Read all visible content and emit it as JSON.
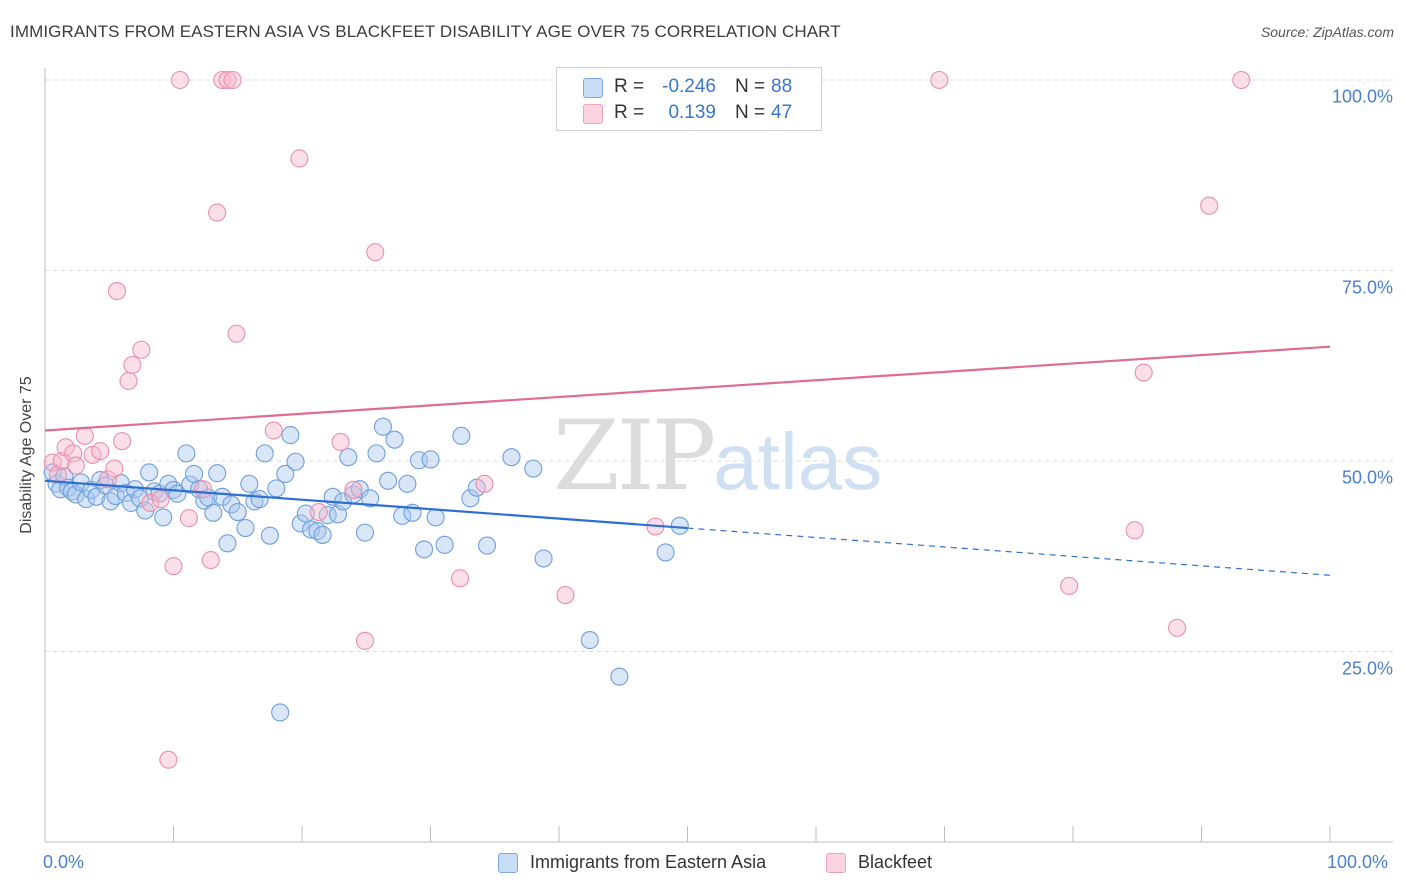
{
  "chart_data": {
    "type": "scatter",
    "title": "IMMIGRANTS FROM EASTERN ASIA VS BLACKFEET DISABILITY AGE OVER 75 CORRELATION CHART",
    "source": "Source: ZipAtlas.com",
    "xlabel": "",
    "ylabel": "Disability Age Over 75",
    "xlim": [
      0,
      100
    ],
    "ylim": [
      0,
      100
    ],
    "x_tick_labels": [
      "0.0%",
      "100.0%"
    ],
    "y_tick_labels": [
      {
        "value": 100,
        "label": "100.0%"
      },
      {
        "value": 75,
        "label": "75.0%"
      },
      {
        "value": 50,
        "label": "50.0%"
      },
      {
        "value": 25,
        "label": "25.0%"
      }
    ],
    "grid": true,
    "watermark": {
      "zip": "ZIP",
      "atlas": "atlas"
    },
    "stats": [
      {
        "series": "Immigrants from Eastern Asia",
        "r_label": "R =",
        "r": "-0.246",
        "n_label": "N =",
        "n": "88",
        "color": "#a9c8f0"
      },
      {
        "series": "Blackfeet",
        "r_label": "R =",
        "r": "0.139",
        "n_label": "N =",
        "n": "47",
        "color": "#f6b8cc"
      }
    ],
    "series": [
      {
        "name": "Immigrants from Eastern Asia",
        "color": "#a9c8f0",
        "stroke": "#6f9fdc",
        "trend": {
          "x0": 0,
          "y0": 47.4,
          "x1": 50,
          "y1": 41.2,
          "dash_x1": 100,
          "dash_y1": 35.0,
          "color": "#2d6fd0"
        },
        "points": [
          [
            0.6,
            48.5
          ],
          [
            0.9,
            47.0
          ],
          [
            1.2,
            46.3
          ],
          [
            1.5,
            48.0
          ],
          [
            1.8,
            46.5
          ],
          [
            2.1,
            46.0
          ],
          [
            2.4,
            45.6
          ],
          [
            2.8,
            47.2
          ],
          [
            3.2,
            45.0
          ],
          [
            3.6,
            46.2
          ],
          [
            4.0,
            45.3
          ],
          [
            4.3,
            47.5
          ],
          [
            4.7,
            46.8
          ],
          [
            5.1,
            44.7
          ],
          [
            5.5,
            45.4
          ],
          [
            5.9,
            47.1
          ],
          [
            6.3,
            45.8
          ],
          [
            6.7,
            44.5
          ],
          [
            7.0,
            46.3
          ],
          [
            7.4,
            45.1
          ],
          [
            7.8,
            43.5
          ],
          [
            8.1,
            48.5
          ],
          [
            8.5,
            46.0
          ],
          [
            8.9,
            45.7
          ],
          [
            9.2,
            42.6
          ],
          [
            9.6,
            47.0
          ],
          [
            10.0,
            46.2
          ],
          [
            10.3,
            45.7
          ],
          [
            11.0,
            51.0
          ],
          [
            11.3,
            46.9
          ],
          [
            11.6,
            48.3
          ],
          [
            12.0,
            46.3
          ],
          [
            12.4,
            44.8
          ],
          [
            12.7,
            45.2
          ],
          [
            13.1,
            43.2
          ],
          [
            13.4,
            48.4
          ],
          [
            13.8,
            45.3
          ],
          [
            14.2,
            39.2
          ],
          [
            14.5,
            44.3
          ],
          [
            15.0,
            43.3
          ],
          [
            15.6,
            41.2
          ],
          [
            15.9,
            47.0
          ],
          [
            16.3,
            44.7
          ],
          [
            16.7,
            45.0
          ],
          [
            17.1,
            51.0
          ],
          [
            17.5,
            40.2
          ],
          [
            18.0,
            46.4
          ],
          [
            18.3,
            17.0
          ],
          [
            18.7,
            48.3
          ],
          [
            19.1,
            53.4
          ],
          [
            19.5,
            49.9
          ],
          [
            19.9,
            41.8
          ],
          [
            20.3,
            43.1
          ],
          [
            20.7,
            41.0
          ],
          [
            21.2,
            40.8
          ],
          [
            21.6,
            40.3
          ],
          [
            22.0,
            42.9
          ],
          [
            22.4,
            45.3
          ],
          [
            22.8,
            43.0
          ],
          [
            23.2,
            44.7
          ],
          [
            23.6,
            50.5
          ],
          [
            24.0,
            45.6
          ],
          [
            24.5,
            46.3
          ],
          [
            24.9,
            40.6
          ],
          [
            25.3,
            45.1
          ],
          [
            25.8,
            51.0
          ],
          [
            26.3,
            54.5
          ],
          [
            26.7,
            47.4
          ],
          [
            27.2,
            52.8
          ],
          [
            27.8,
            42.8
          ],
          [
            28.2,
            47.0
          ],
          [
            28.6,
            43.2
          ],
          [
            29.1,
            50.1
          ],
          [
            29.5,
            38.4
          ],
          [
            30.0,
            50.2
          ],
          [
            30.4,
            42.6
          ],
          [
            31.1,
            39.0
          ],
          [
            32.4,
            53.3
          ],
          [
            33.1,
            45.1
          ],
          [
            33.6,
            46.5
          ],
          [
            34.4,
            38.9
          ],
          [
            36.3,
            50.5
          ],
          [
            38.0,
            49.0
          ],
          [
            38.8,
            37.2
          ],
          [
            42.4,
            26.5
          ],
          [
            44.7,
            21.7
          ],
          [
            48.3,
            38.0
          ],
          [
            49.4,
            41.5
          ]
        ]
      },
      {
        "name": "Blackfeet",
        "color": "#f6b8cc",
        "stroke": "#e98fab",
        "trend": {
          "x0": 0,
          "y0": 54.0,
          "x1": 100,
          "y1": 65.0,
          "color": "#e06b95"
        },
        "points": [
          [
            0.6,
            49.8
          ],
          [
            1.0,
            48.2
          ],
          [
            1.3,
            50.0
          ],
          [
            1.6,
            51.8
          ],
          [
            2.2,
            51.0
          ],
          [
            2.4,
            49.4
          ],
          [
            3.1,
            53.3
          ],
          [
            3.7,
            50.8
          ],
          [
            4.3,
            51.3
          ],
          [
            4.9,
            47.6
          ],
          [
            5.4,
            49.0
          ],
          [
            5.6,
            72.3
          ],
          [
            6.0,
            52.6
          ],
          [
            6.5,
            60.5
          ],
          [
            6.8,
            62.6
          ],
          [
            7.5,
            64.6
          ],
          [
            8.2,
            44.5
          ],
          [
            9.0,
            45.0
          ],
          [
            9.6,
            10.8
          ],
          [
            10.0,
            36.2
          ],
          [
            10.5,
            100
          ],
          [
            11.2,
            42.5
          ],
          [
            12.3,
            46.3
          ],
          [
            12.9,
            37.0
          ],
          [
            13.4,
            82.6
          ],
          [
            13.8,
            100
          ],
          [
            14.2,
            100
          ],
          [
            14.6,
            100
          ],
          [
            14.9,
            66.7
          ],
          [
            17.8,
            54.0
          ],
          [
            19.8,
            89.7
          ],
          [
            21.3,
            43.3
          ],
          [
            23.0,
            52.5
          ],
          [
            24.0,
            46.2
          ],
          [
            24.9,
            26.4
          ],
          [
            25.7,
            77.4
          ],
          [
            32.3,
            34.6
          ],
          [
            34.2,
            47.0
          ],
          [
            40.5,
            32.4
          ],
          [
            47.5,
            41.4
          ],
          [
            69.6,
            100
          ],
          [
            79.7,
            33.6
          ],
          [
            84.8,
            40.9
          ],
          [
            85.5,
            61.6
          ],
          [
            88.1,
            28.1
          ],
          [
            90.6,
            83.5
          ],
          [
            93.1,
            100
          ]
        ]
      }
    ]
  },
  "legend": {
    "items": [
      {
        "label": "Immigrants from Eastern Asia",
        "color": "#a9c8f0"
      },
      {
        "label": "Blackfeet",
        "color": "#f6b8cc"
      }
    ]
  }
}
